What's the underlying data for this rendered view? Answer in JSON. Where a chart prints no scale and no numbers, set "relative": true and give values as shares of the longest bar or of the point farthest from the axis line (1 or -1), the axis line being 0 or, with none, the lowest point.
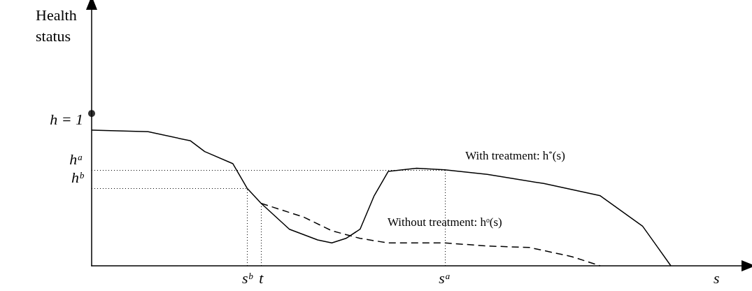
{
  "chart_data": {
    "type": "line",
    "relative": true,
    "xlabel": "s",
    "ylabel": "Health status",
    "categories": [
      null,
      null,
      null,
      null,
      null,
      null,
      null,
      null,
      null,
      null,
      null,
      "sᵇ",
      "t",
      null,
      null,
      null,
      null,
      null,
      null,
      null,
      null,
      null,
      null,
      null,
      null,
      "sᵃ",
      null,
      null,
      null,
      null,
      null,
      null,
      null,
      null,
      null,
      null,
      null,
      null,
      null,
      null,
      null,
      null,
      null,
      null,
      null,
      null,
      null
    ],
    "tick_labels": "x",
    "grid": false,
    "marker": "none",
    "series": [
      {
        "name": "With treatment: h$^{*}$(s)",
        "color": "#000000",
        "line_style": "solid",
        "values": [
          0.89,
          null,
          null,
          null,
          0.88,
          null,
          null,
          0.82,
          0.75,
          null,
          0.67,
          0.51,
          0.41,
          null,
          0.24,
          null,
          0.17,
          0.15,
          0.18,
          0.24,
          0.46,
          0.62,
          null,
          0.64,
          null,
          0.63,
          null,
          null,
          0.6,
          null,
          null,
          null,
          0.54,
          null,
          null,
          null,
          0.46,
          null,
          null,
          0.26,
          0.13,
          0.0,
          null,
          null,
          null,
          null,
          null
        ]
      },
      {
        "name": "Without treatment: hᵒ(s)",
        "color": "#000000",
        "line_style": "dashed",
        "values": [
          null,
          null,
          null,
          null,
          null,
          null,
          null,
          null,
          null,
          null,
          null,
          null,
          0.41,
          null,
          null,
          0.32,
          null,
          0.23,
          null,
          0.18,
          null,
          0.15,
          null,
          null,
          null,
          0.15,
          null,
          null,
          0.13,
          null,
          null,
          0.12,
          null,
          null,
          0.06,
          null,
          0.0,
          null,
          null,
          null,
          null,
          null,
          null,
          null,
          null,
          null,
          null
        ]
      },
      {
        "type": "scatter",
        "marker": "circle",
        "color": "#000000",
        "values": [
          1,
          null,
          null,
          null,
          null,
          null,
          null,
          null,
          null,
          null,
          null,
          null,
          null,
          null,
          null,
          null,
          null,
          null,
          null,
          null,
          null,
          null,
          null,
          null,
          null,
          null,
          null,
          null,
          null,
          null,
          null,
          null,
          null,
          null,
          null,
          null,
          null,
          null,
          null,
          null,
          null,
          null,
          null,
          null,
          null,
          null,
          null
        ]
      }
    ],
    "ref_lines": [
      {
        "axis": "y",
        "value": 0.63,
        "label": "hᵃ"
      },
      {
        "axis": "y",
        "value": 0.51,
        "label": "hᵇ"
      },
      {
        "axis": "x",
        "value": "sᵇ"
      },
      {
        "axis": "x",
        "value": "t"
      },
      {
        "axis": "x",
        "value": "sᵃ"
      }
    ],
    "annotations": [
      "h = 1"
    ]
  }
}
